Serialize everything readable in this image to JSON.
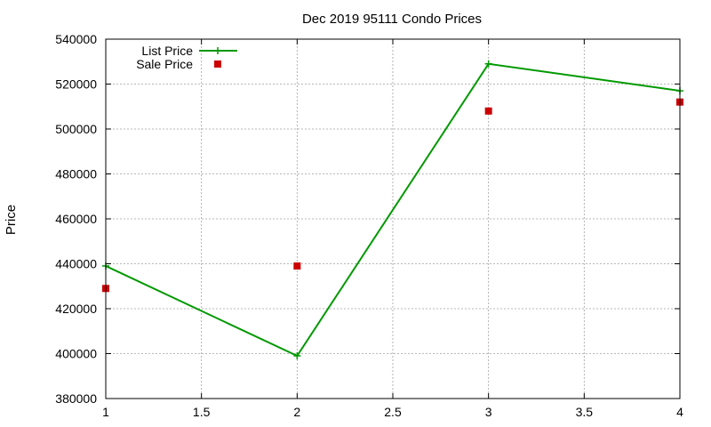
{
  "chart_data": {
    "type": "line",
    "title": "Dec 2019 95111 Condo Prices",
    "xlabel": "",
    "ylabel": "Price",
    "xlim": [
      1,
      4
    ],
    "ylim": [
      380000,
      540000
    ],
    "x_ticks": [
      "1",
      "1.5",
      "2",
      "2.5",
      "3",
      "3.5",
      "4"
    ],
    "y_ticks": [
      "380000",
      "400000",
      "420000",
      "440000",
      "460000",
      "480000",
      "500000",
      "520000",
      "540000"
    ],
    "grid": true,
    "legend_position": "top-left",
    "series": [
      {
        "name": "List Price",
        "style": "line-plus",
        "color": "#009900",
        "x": [
          1,
          2,
          3,
          4
        ],
        "values": [
          439000,
          399000,
          529000,
          517000
        ]
      },
      {
        "name": "Sale Price",
        "style": "square-points",
        "color": "#cc0000",
        "x": [
          1,
          2,
          3,
          4
        ],
        "values": [
          429000,
          439000,
          508000,
          512000
        ]
      }
    ]
  }
}
